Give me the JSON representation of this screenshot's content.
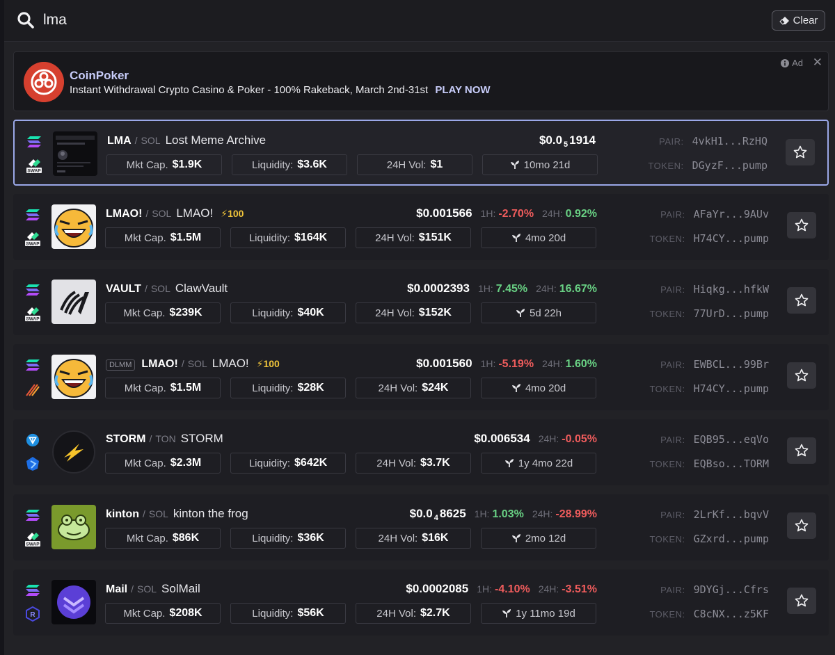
{
  "search": {
    "query": "lma",
    "value": "lma",
    "clear_label": "Clear"
  },
  "ad": {
    "title": "CoinPoker",
    "text": "Instant Withdrawal Crypto Casino & Poker - 100% Rakeback, March 2nd-31st",
    "cta": "PLAY NOW",
    "tag": "Ad"
  },
  "labels": {
    "mkt_cap": "Mkt Cap.",
    "liquidity": "Liquidity:",
    "vol": "24H Vol:",
    "h1": "1H:",
    "h24": "24H:",
    "pair": "PAIR:",
    "token": "TOKEN:",
    "sep": "/",
    "swap": "SWAP",
    "dlmm": "DLMM"
  },
  "rows": [
    {
      "symbol": "LMA",
      "chain": "SOL",
      "name": "Lost Meme Archive",
      "boost": "",
      "price_main": "$0.0",
      "price_sub": "5",
      "price_tail": "1914",
      "h1": "",
      "h24": "",
      "mkt_cap": "$1.9K",
      "liquidity": "$3.6K",
      "vol": "$1",
      "age": "10mo 21d",
      "pair": "4vkH1...RzHQ",
      "token": "DGyzF...pump"
    },
    {
      "symbol": "LMAO!",
      "chain": "SOL",
      "name": "LMAO!",
      "boost": "100",
      "price_main": "$0.001566",
      "price_sub": "",
      "price_tail": "",
      "h1": "-2.70%",
      "h24": "0.92%",
      "mkt_cap": "$1.5M",
      "liquidity": "$164K",
      "vol": "$151K",
      "age": "4mo 20d",
      "pair": "AFaYr...9AUv",
      "token": "H74CY...pump"
    },
    {
      "symbol": "VAULT",
      "chain": "SOL",
      "name": "ClawVault",
      "boost": "",
      "price_main": "$0.0002393",
      "price_sub": "",
      "price_tail": "",
      "h1": "7.45%",
      "h24": "16.67%",
      "mkt_cap": "$239K",
      "liquidity": "$40K",
      "vol": "$152K",
      "age": "5d 22h",
      "pair": "Hiqkg...hfkW",
      "token": "77UrD...pump"
    },
    {
      "symbol": "LMAO!",
      "chain": "SOL",
      "name": "LMAO!",
      "boost": "100",
      "price_main": "$0.001560",
      "price_sub": "",
      "price_tail": "",
      "h1": "-5.19%",
      "h24": "1.60%",
      "mkt_cap": "$1.5M",
      "liquidity": "$28K",
      "vol": "$24K",
      "age": "4mo 20d",
      "pair": "EWBCL...99Br",
      "token": "H74CY...pump"
    },
    {
      "symbol": "STORM",
      "chain": "TON",
      "name": "STORM",
      "boost": "",
      "price_main": "$0.006534",
      "price_sub": "",
      "price_tail": "",
      "h1": "",
      "h24": "-0.05%",
      "mkt_cap": "$2.3M",
      "liquidity": "$642K",
      "vol": "$3.7K",
      "age": "1y 4mo 22d",
      "pair": "EQB95...eqVo",
      "token": "EQBso...TORM"
    },
    {
      "symbol": "kinton",
      "chain": "SOL",
      "name": "kinton the frog",
      "boost": "",
      "price_main": "$0.0",
      "price_sub": "4",
      "price_tail": "8625",
      "h1": "1.03%",
      "h24": "-28.99%",
      "mkt_cap": "$86K",
      "liquidity": "$36K",
      "vol": "$16K",
      "age": "2mo 12d",
      "pair": "2LrKf...bqvV",
      "token": "GZxrd...pump"
    },
    {
      "symbol": "Mail",
      "chain": "SOL",
      "name": "SolMail",
      "boost": "",
      "price_main": "$0.0002085",
      "price_sub": "",
      "price_tail": "",
      "h1": "-4.10%",
      "h24": "-3.51%",
      "mkt_cap": "$208K",
      "liquidity": "$56K",
      "vol": "$2.7K",
      "age": "1y 11mo 19d",
      "pair": "9DYGj...Cfrs",
      "token": "C8cNX...z5KF"
    }
  ]
}
